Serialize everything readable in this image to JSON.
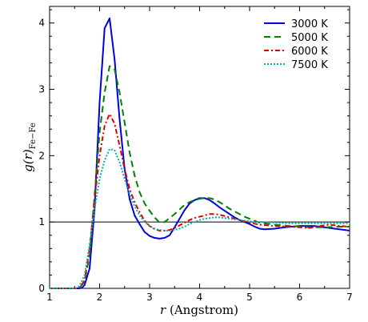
{
  "chart_data": {
    "type": "line",
    "title": "",
    "xlabel_italic": "r",
    "xlabel_rest": " (Angstrom)",
    "ylabel_italic": "g(r)",
    "ylabel_sub": "Fe−Fe",
    "xlim": [
      1,
      7
    ],
    "ylim": [
      0,
      4.25
    ],
    "xticks": [
      "1",
      "2",
      "3",
      "4",
      "5",
      "6",
      "7"
    ],
    "yticks": [
      "0",
      "1",
      "2",
      "3",
      "4"
    ],
    "reference_line_y": 1,
    "legend_position": "top-right",
    "grid": false,
    "series": [
      {
        "name": "3000 K",
        "color": "#0000dd",
        "dash": "solid",
        "x": [
          1.0,
          1.6,
          1.65,
          1.7,
          1.8,
          1.9,
          2.0,
          2.1,
          2.2,
          2.3,
          2.4,
          2.5,
          2.6,
          2.7,
          2.8,
          2.9,
          3.0,
          3.1,
          3.2,
          3.3,
          3.4,
          3.5,
          3.6,
          3.7,
          3.8,
          3.9,
          4.0,
          4.1,
          4.2,
          4.3,
          4.4,
          4.5,
          4.6,
          4.7,
          4.8,
          4.9,
          5.0,
          5.1,
          5.2,
          5.3,
          5.5,
          5.7,
          6.0,
          6.3,
          6.6,
          7.0
        ],
        "y": [
          0,
          0,
          0.01,
          0.05,
          0.3,
          1.2,
          2.8,
          3.92,
          4.07,
          3.45,
          2.55,
          1.8,
          1.35,
          1.1,
          0.97,
          0.85,
          0.79,
          0.76,
          0.75,
          0.76,
          0.8,
          0.92,
          1.05,
          1.18,
          1.28,
          1.33,
          1.36,
          1.36,
          1.33,
          1.28,
          1.22,
          1.17,
          1.12,
          1.07,
          1.03,
          1.0,
          0.97,
          0.93,
          0.9,
          0.89,
          0.9,
          0.92,
          0.94,
          0.94,
          0.91,
          0.87
        ]
      },
      {
        "name": "5000 K",
        "color": "#008000",
        "dash": "8,5",
        "x": [
          1.0,
          1.55,
          1.6,
          1.7,
          1.8,
          1.9,
          2.0,
          2.1,
          2.2,
          2.3,
          2.4,
          2.5,
          2.6,
          2.7,
          2.8,
          2.9,
          3.0,
          3.1,
          3.2,
          3.3,
          3.4,
          3.5,
          3.6,
          3.7,
          3.8,
          3.9,
          4.0,
          4.1,
          4.2,
          4.3,
          4.4,
          4.5,
          4.6,
          4.7,
          4.8,
          4.9,
          5.0,
          5.2,
          5.5,
          5.8,
          6.0,
          6.2,
          6.5,
          6.8,
          7.0
        ],
        "y": [
          0,
          0,
          0.01,
          0.1,
          0.5,
          1.4,
          2.35,
          2.95,
          3.35,
          3.3,
          2.95,
          2.5,
          2.05,
          1.7,
          1.45,
          1.28,
          1.17,
          1.07,
          0.99,
          1.0,
          1.06,
          1.12,
          1.19,
          1.26,
          1.3,
          1.33,
          1.35,
          1.36,
          1.36,
          1.34,
          1.3,
          1.25,
          1.2,
          1.16,
          1.12,
          1.08,
          1.05,
          0.99,
          0.96,
          0.94,
          0.93,
          0.92,
          0.92,
          0.93,
          0.93
        ]
      },
      {
        "name": "6000 K",
        "color": "#dd0000",
        "dash": "6,3,2,3",
        "x": [
          1.0,
          1.55,
          1.6,
          1.7,
          1.8,
          1.9,
          2.0,
          2.1,
          2.2,
          2.3,
          2.4,
          2.5,
          2.6,
          2.7,
          2.8,
          2.9,
          3.0,
          3.1,
          3.2,
          3.3,
          3.4,
          3.5,
          3.6,
          3.7,
          3.8,
          3.9,
          4.0,
          4.1,
          4.2,
          4.3,
          4.4,
          4.5,
          4.6,
          4.7,
          4.8,
          4.9,
          5.0,
          5.2,
          5.5,
          5.8,
          6.0,
          6.2,
          6.4,
          6.6,
          6.8,
          7.0
        ],
        "y": [
          0,
          0,
          0.01,
          0.12,
          0.6,
          1.35,
          2.0,
          2.45,
          2.63,
          2.48,
          2.15,
          1.8,
          1.5,
          1.3,
          1.15,
          1.02,
          0.94,
          0.89,
          0.87,
          0.87,
          0.88,
          0.91,
          0.95,
          0.99,
          1.03,
          1.06,
          1.08,
          1.1,
          1.12,
          1.12,
          1.11,
          1.09,
          1.07,
          1.05,
          1.03,
          1.01,
          0.99,
          0.96,
          0.94,
          0.93,
          0.92,
          0.91,
          0.94,
          0.96,
          0.94,
          0.93
        ]
      },
      {
        "name": "7500 K",
        "color": "#00b0b0",
        "dash": "2,2",
        "x": [
          1.0,
          1.5,
          1.55,
          1.6,
          1.7,
          1.8,
          1.9,
          2.0,
          2.1,
          2.2,
          2.3,
          2.4,
          2.5,
          2.6,
          2.7,
          2.8,
          2.9,
          3.0,
          3.1,
          3.2,
          3.3,
          3.4,
          3.5,
          3.6,
          3.7,
          3.8,
          3.9,
          4.0,
          4.1,
          4.2,
          4.3,
          4.4,
          4.5,
          4.6,
          4.7,
          4.8,
          4.9,
          5.0,
          5.2,
          5.5,
          5.8,
          6.0,
          6.3,
          6.6,
          7.0
        ],
        "y": [
          0,
          0,
          0.01,
          0.04,
          0.2,
          0.65,
          1.2,
          1.65,
          1.93,
          2.1,
          2.08,
          1.9,
          1.65,
          1.42,
          1.24,
          1.1,
          1.0,
          0.94,
          0.9,
          0.88,
          0.87,
          0.87,
          0.88,
          0.9,
          0.93,
          0.97,
          1.0,
          1.03,
          1.05,
          1.06,
          1.07,
          1.07,
          1.06,
          1.05,
          1.04,
          1.03,
          1.02,
          1.01,
          1.0,
          0.99,
          0.98,
          0.98,
          0.98,
          0.98,
          0.98
        ]
      }
    ]
  }
}
